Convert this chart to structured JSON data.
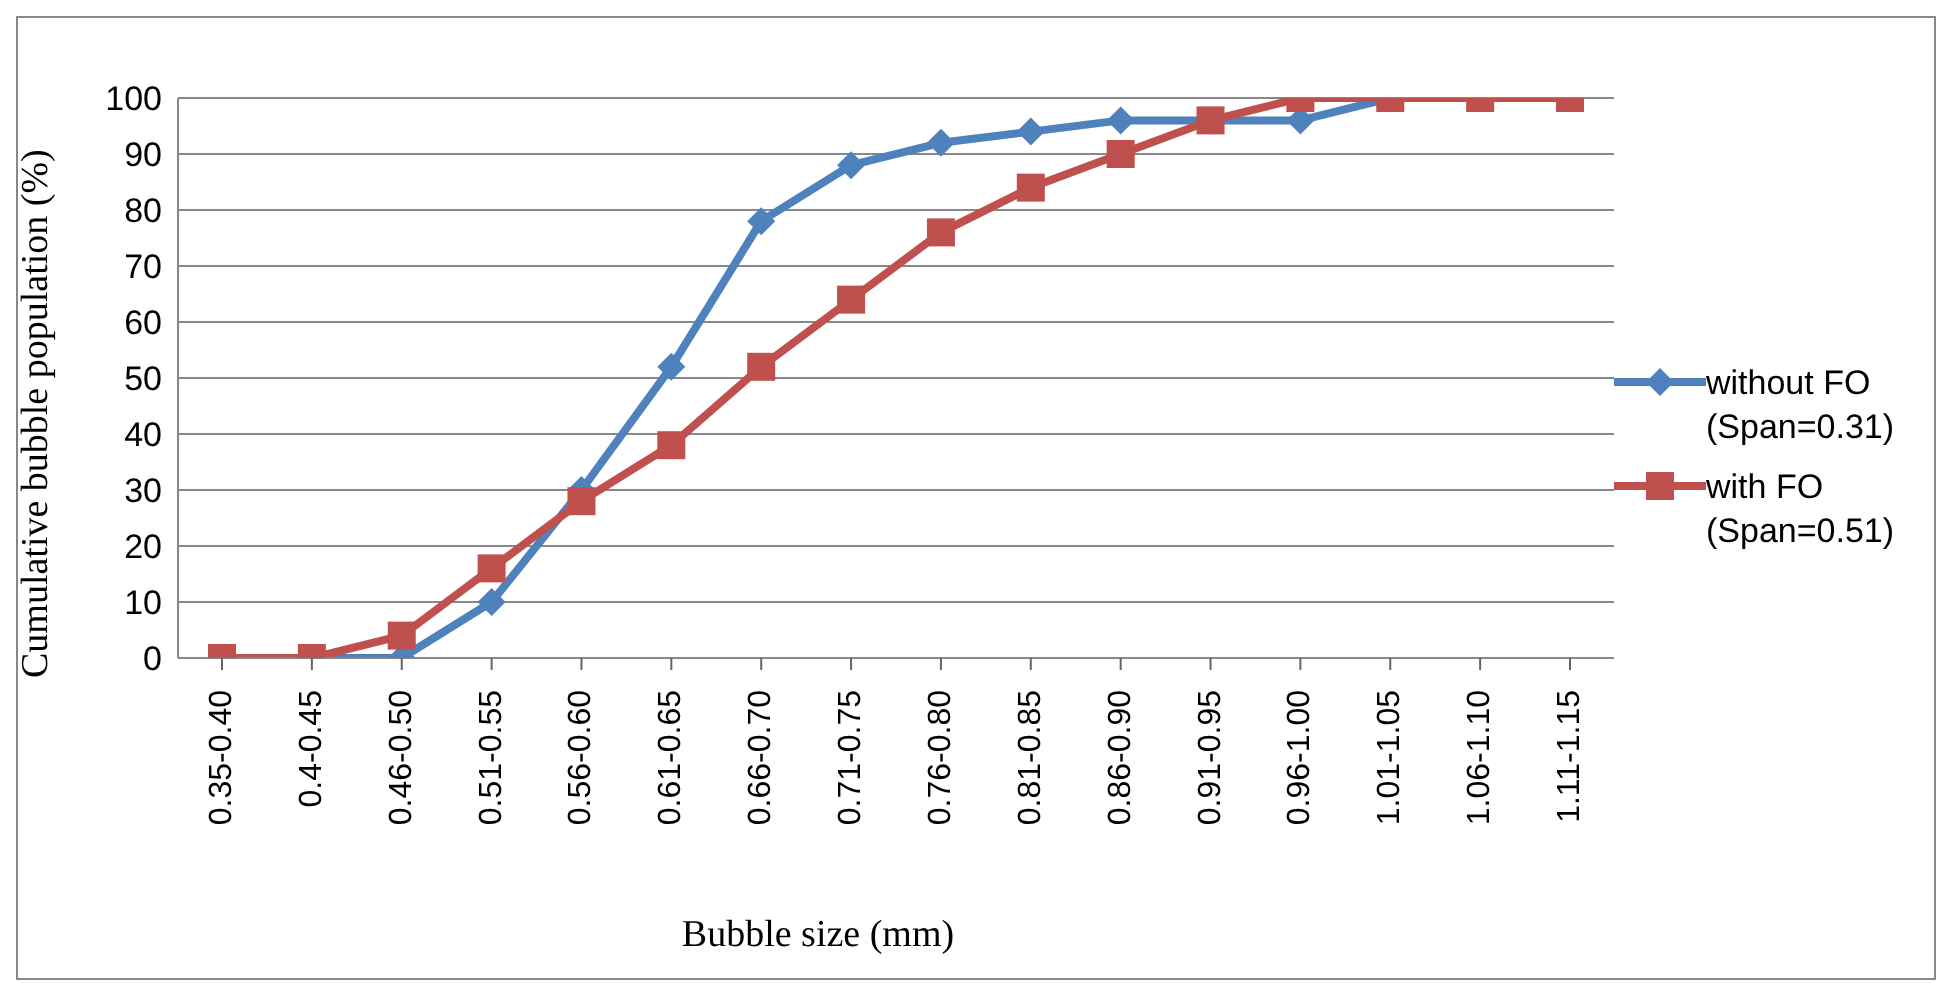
{
  "chart_data": {
    "type": "line",
    "xlabel": "Bubble size (mm)",
    "ylabel": "Cumulative bubble population (%)",
    "categories": [
      "0.35-0.40",
      "0.4-0.45",
      "0.46-0.50",
      "0.51-0.55",
      "0.56-0.60",
      "0.61-0.65",
      "0.66-0.70",
      "0.71-0.75",
      "0.76-0.80",
      "0.81-0.85",
      "0.86-0.90",
      "0.91-0.95",
      "0.96-1.00",
      "1.01-1.05",
      "1.06-1.10",
      "1.11-1.15"
    ],
    "series": [
      {
        "name": "without FO (Span=0.31)",
        "color": "#4f81bd",
        "marker": "diamond",
        "values": [
          0,
          0,
          0,
          10,
          30,
          52,
          78,
          88,
          92,
          94,
          96,
          96,
          96,
          100,
          100,
          100
        ]
      },
      {
        "name": "with FO (Span=0.51)",
        "color": "#c0504d",
        "marker": "square",
        "values": [
          0,
          0,
          4,
          16,
          28,
          38,
          52,
          64,
          76,
          84,
          90,
          96,
          100,
          100,
          100,
          100
        ]
      }
    ],
    "ylim": [
      0,
      100
    ],
    "yticks": [
      0,
      10,
      20,
      30,
      40,
      50,
      60,
      70,
      80,
      90,
      100
    ],
    "grid": "y",
    "legend": "right"
  }
}
